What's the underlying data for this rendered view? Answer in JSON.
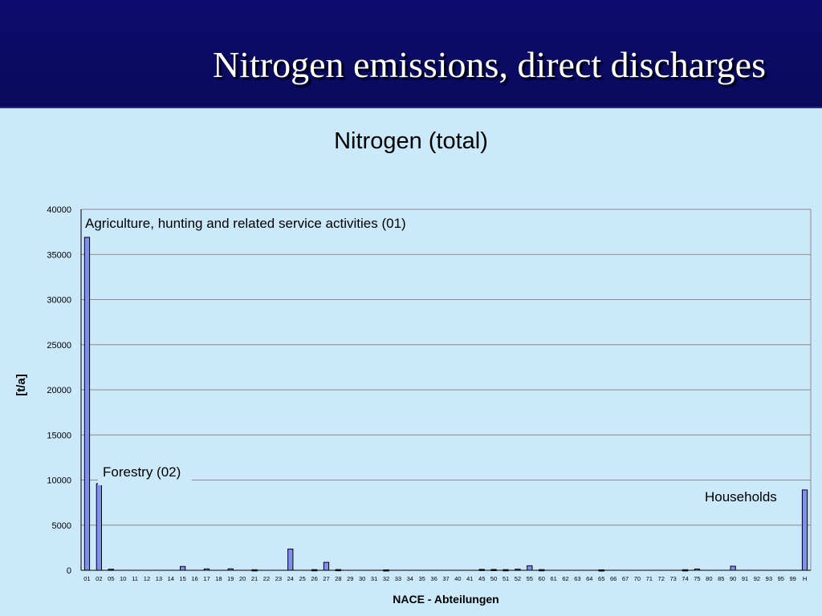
{
  "slide": {
    "title": "Nitrogen emissions, direct discharges"
  },
  "chart_data": {
    "type": "bar",
    "title": "Nitrogen (total)",
    "xlabel": "NACE - Abteilungen",
    "ylabel": "[t/a]",
    "ylim": [
      0,
      40000
    ],
    "yticks": [
      0,
      5000,
      10000,
      15000,
      20000,
      25000,
      30000,
      35000,
      40000
    ],
    "grid": true,
    "bar_color": "#8090f0",
    "categories": [
      "01",
      "02",
      "05",
      "10",
      "11",
      "12",
      "13",
      "14",
      "15",
      "16",
      "17",
      "18",
      "19",
      "20",
      "21",
      "22",
      "23",
      "24",
      "25",
      "26",
      "27",
      "28",
      "29",
      "30",
      "31",
      "32",
      "33",
      "34",
      "35",
      "36",
      "37",
      "40",
      "41",
      "45",
      "50",
      "51",
      "52",
      "55",
      "60",
      "61",
      "62",
      "63",
      "64",
      "65",
      "66",
      "67",
      "70",
      "71",
      "72",
      "73",
      "74",
      "75",
      "80",
      "85",
      "90",
      "91",
      "92",
      "93",
      "95",
      "99",
      "H"
    ],
    "values": [
      36900,
      9600,
      120,
      0,
      0,
      0,
      0,
      0,
      420,
      0,
      150,
      0,
      160,
      0,
      60,
      0,
      0,
      2350,
      0,
      70,
      880,
      80,
      0,
      0,
      0,
      50,
      0,
      0,
      0,
      0,
      0,
      0,
      0,
      100,
      90,
      70,
      120,
      500,
      70,
      0,
      0,
      0,
      0,
      50,
      0,
      0,
      0,
      0,
      0,
      0,
      60,
      140,
      0,
      0,
      450,
      0,
      0,
      0,
      0,
      0,
      8900
    ],
    "annotations": [
      {
        "text": "Agriculture, hunting and related service activities (01)",
        "category": "01"
      },
      {
        "text": "Forestry (02)",
        "category": "02"
      },
      {
        "text": "Households",
        "category": "H"
      }
    ]
  }
}
